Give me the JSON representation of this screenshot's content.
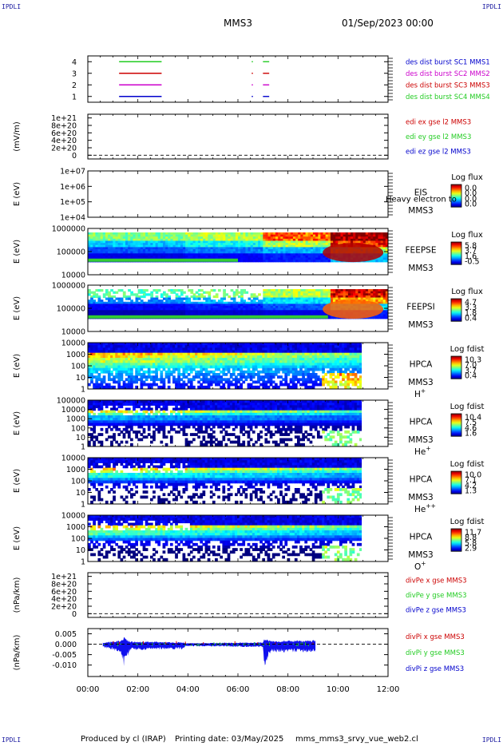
{
  "header": {
    "corner_label": "IPDLI",
    "spacecraft": "MMS3",
    "datetime": "01/Sep/2023 00:00"
  },
  "footer": {
    "produced_by": "Produced by cl (IRAP)",
    "printing_date": "Printing date: 03/May/2025",
    "script_name": "mms_mms3_srvy_vue_web2.cl"
  },
  "colors": {
    "blue": "#0000cc",
    "magenta": "#cc00cc",
    "red": "#cc0000",
    "green": "#22cc22",
    "black": "#000000"
  },
  "chart_data": {
    "type": "multi-panel time series / spectrogram",
    "x": {
      "ticks": [
        "00:00",
        "02:00",
        "04:00",
        "06:00",
        "08:00",
        "10:00",
        "12:00"
      ],
      "range_hours": [
        0,
        12
      ]
    },
    "panels": [
      {
        "id": "burst",
        "type": "timeline",
        "yticks": [
          "4",
          "3",
          "2",
          "1"
        ],
        "yrange": [
          0.5,
          4.5
        ],
        "legend": [
          {
            "text": "des dist burst SC1 MMS1",
            "color": "#0000cc"
          },
          {
            "text": "des dist burst SC2 MMS2",
            "color": "#cc00cc"
          },
          {
            "text": "des dist burst SC3 MMS3",
            "color": "#cc0000"
          },
          {
            "text": "des dist burst SC4 MMS4",
            "color": "#22cc22"
          }
        ],
        "intervals": [
          {
            "sc": 4,
            "color": "#22cc22",
            "spans": [
              [
                1.25,
                2.95
              ],
              [
                6.55,
                6.6
              ],
              [
                7.0,
                7.25
              ]
            ]
          },
          {
            "sc": 3,
            "color": "#cc0000",
            "spans": [
              [
                1.25,
                2.95
              ],
              [
                6.55,
                6.6
              ],
              [
                7.0,
                7.25
              ]
            ]
          },
          {
            "sc": 2,
            "color": "#cc00cc",
            "spans": [
              [
                1.25,
                2.95
              ],
              [
                6.55,
                6.6
              ],
              [
                7.0,
                7.25
              ]
            ]
          },
          {
            "sc": 1,
            "color": "#0000cc",
            "spans": [
              [
                1.25,
                2.95
              ],
              [
                6.55,
                6.6
              ],
              [
                7.0,
                7.25
              ]
            ]
          }
        ]
      },
      {
        "id": "edi",
        "type": "line",
        "ylabel": "(mV/m)",
        "yticks": [
          "1e+21",
          "8e+20",
          "6e+20",
          "4e+20",
          "2e+20",
          "0"
        ],
        "ytick_values": [
          1e+21,
          8e+20,
          6e+20,
          4e+20,
          2e+20,
          0
        ],
        "yrange": [
          -1e+20,
          1.1e+21
        ],
        "legend": [
          {
            "text": "edi ex gse l2 MMS3",
            "color": "#cc0000"
          },
          {
            "text": "edi ey gse l2 MMS3",
            "color": "#22cc22"
          },
          {
            "text": "edi ez gse l2 MMS3",
            "color": "#0000cc"
          }
        ]
      },
      {
        "id": "eis",
        "type": "spectrogram",
        "ylabel": "E (eV)",
        "yticks": [
          "1e+07",
          "1e+06",
          "1e+05",
          "1e+04"
        ],
        "log_range": [
          4,
          7
        ],
        "instrument": "EIS",
        "overlay_text": "Heavy electron to",
        "sc": "MMS3",
        "cb_title": "Log flux",
        "cb_ticks": [
          "0.0",
          "0.0",
          "0.0",
          "0.0"
        ],
        "data": []
      },
      {
        "id": "feepse",
        "type": "spectrogram",
        "ylabel": "E (eV)",
        "yticks": [
          "1000000",
          "100000",
          "10000"
        ],
        "log_range": [
          4,
          6
        ],
        "instrument": "FEEPSE",
        "sc": "MMS3",
        "cb_title": "Log flux",
        "cb_ticks": [
          "5.8",
          "3.7",
          "1.6",
          "-0.5"
        ],
        "data_range": [
          4.6,
          6.1
        ],
        "segments": [
          {
            "t": [
              0.0,
              3.85
            ],
            "vals": [
              0.5,
              0.32,
              0.2,
              0.1
            ]
          },
          {
            "t": [
              3.85,
              7.0
            ],
            "vals": [
              0.55,
              0.38,
              0.25,
              0.12
            ]
          },
          {
            "t": [
              7.0,
              9.7
            ],
            "vals": [
              0.78,
              0.55,
              0.3,
              0.15
            ]
          },
          {
            "t": [
              9.7,
              12.0
            ],
            "vals": [
              0.98,
              0.85,
              0.55,
              0.3
            ]
          }
        ]
      },
      {
        "id": "feepsi",
        "type": "spectrogram",
        "ylabel": "E (eV)",
        "yticks": [
          "1000000",
          "100000",
          "10000"
        ],
        "log_range": [
          4,
          6
        ],
        "instrument": "FEEPSI",
        "sc": "MMS3",
        "cb_title": "Log flux",
        "cb_ticks": [
          "4.7",
          "3.3",
          "1.8",
          "0.4"
        ],
        "data_range": [
          4.6,
          6.1
        ],
        "segments": [
          {
            "t": [
              0.0,
              3.85
            ],
            "vals": [
              0.45,
              0.25,
              0.12,
              0.05
            ]
          },
          {
            "t": [
              3.85,
              7.0
            ],
            "vals": [
              0.5,
              0.3,
              0.15,
              0.08
            ]
          },
          {
            "t": [
              7.0,
              9.7
            ],
            "vals": [
              0.55,
              0.35,
              0.2,
              0.1
            ]
          },
          {
            "t": [
              9.7,
              12.0
            ],
            "vals": [
              0.9,
              0.7,
              0.35,
              0.15
            ]
          }
        ]
      },
      {
        "id": "hpca_h",
        "type": "spectrogram",
        "ylabel": "E (eV)",
        "yticks": [
          "10000",
          "1000",
          "100",
          "10",
          "1"
        ],
        "log_range": [
          0,
          4.5
        ],
        "instrument": "HPCA",
        "sc": "MMS3",
        "species": "H",
        "species_sup": "+",
        "cb_title": "Log fdist",
        "cb_ticks": [
          "10.3",
          "7.0",
          "3.7",
          "0.4"
        ],
        "data_range": [
          0.3,
          4.3
        ],
        "end_hour": 10.95,
        "profile": [
          0.85,
          0.78,
          0.72,
          0.65,
          0.58,
          0.5,
          0.42,
          0.35,
          0.3,
          0.25,
          0.2,
          0.15
        ]
      },
      {
        "id": "hpca_he",
        "type": "spectrogram",
        "ylabel": "E (eV)",
        "yticks": [
          "100000",
          "10000",
          "1000",
          "100",
          "10",
          "1"
        ],
        "log_range": [
          0,
          5
        ],
        "instrument": "HPCA",
        "sc": "MMS3",
        "species": "He",
        "species_sup": "+",
        "cb_title": "Log fdist",
        "cb_ticks": [
          "10.4",
          "7.5",
          "4.6",
          "1.6"
        ],
        "data_range": [
          1.3,
          4.3
        ],
        "end_hour": 10.95,
        "profile": [
          0.9,
          0.8,
          0.65,
          0.45,
          0.3,
          0.2,
          0.12,
          0.05,
          0.0,
          0.0,
          0.0,
          0.0
        ]
      },
      {
        "id": "hpca_he2",
        "type": "spectrogram",
        "ylabel": "E (eV)",
        "yticks": [
          "10000",
          "1000",
          "100",
          "10",
          "1"
        ],
        "log_range": [
          0,
          4.5
        ],
        "instrument": "HPCA",
        "sc": "MMS3",
        "species": "He",
        "species_sup": "++",
        "cb_title": "Log fdist",
        "cb_ticks": [
          "10.0",
          "7.1",
          "4.2",
          "1.3"
        ],
        "data_range": [
          0.3,
          4.3
        ],
        "end_hour": 10.95,
        "profile": [
          0.9,
          0.82,
          0.7,
          0.55,
          0.4,
          0.28,
          0.18,
          0.1,
          0.05,
          0.0,
          0.0,
          0.0
        ]
      },
      {
        "id": "hpca_o",
        "type": "spectrogram",
        "ylabel": "E (eV)",
        "yticks": [
          "10000",
          "1000",
          "100",
          "10",
          "1"
        ],
        "log_range": [
          0,
          4.5
        ],
        "instrument": "HPCA",
        "sc": "MMS3",
        "species": "O",
        "species_sup": "+",
        "cb_title": "Log fdist",
        "cb_ticks": [
          "11.7",
          "8.8",
          "5.8",
          "2.9"
        ],
        "data_range": [
          0.3,
          4.3
        ],
        "end_hour": 10.95,
        "profile": [
          0.9,
          0.8,
          0.7,
          0.58,
          0.45,
          0.32,
          0.22,
          0.12,
          0.05,
          0.0,
          0.0,
          0.0
        ]
      },
      {
        "id": "divpe",
        "type": "line",
        "ylabel": "(nPa/km)",
        "yticks": [
          "1e+21",
          "8e+20",
          "6e+20",
          "4e+20",
          "2e+20",
          "0"
        ],
        "ytick_values": [
          1e+21,
          8e+20,
          6e+20,
          4e+20,
          2e+20,
          0
        ],
        "yrange": [
          -1e+20,
          1.1e+21
        ],
        "legend": [
          {
            "text": "divPe x gse MMS3",
            "color": "#cc0000"
          },
          {
            "text": "divPe y gse MMS3",
            "color": "#22cc22"
          },
          {
            "text": "divPe z gse MMS3",
            "color": "#0000cc"
          }
        ]
      },
      {
        "id": "divpi",
        "type": "line",
        "ylabel": "(nPa/km)",
        "yticks": [
          "0.005",
          "0.000",
          "-0.005",
          "-0.010"
        ],
        "ytick_values": [
          0.005,
          0.0,
          -0.005,
          -0.01
        ],
        "yrange": [
          -0.0155,
          0.0075
        ],
        "legend": [
          {
            "text": "divPi x gse MMS3",
            "color": "#cc0000"
          },
          {
            "text": "divPi y gse MMS3",
            "color": "#22cc22"
          },
          {
            "text": "divPi z gse MMS3",
            "color": "#0000cc"
          }
        ],
        "data_span_hours": [
          0.6,
          9.1
        ],
        "envelope": [
          {
            "t": 0.6,
            "lo": -0.0015,
            "hi": 0.0008
          },
          {
            "t": 1.3,
            "lo": -0.004,
            "hi": 0.002
          },
          {
            "t": 1.45,
            "lo": -0.011,
            "hi": 0.0035
          },
          {
            "t": 1.7,
            "lo": -0.003,
            "hi": 0.0015
          },
          {
            "t": 3.8,
            "lo": -0.0025,
            "hi": 0.001
          },
          {
            "t": 3.9,
            "lo": -0.001,
            "hi": 0.0005
          },
          {
            "t": 7.0,
            "lo": -0.0015,
            "hi": 0.001
          },
          {
            "t": 7.05,
            "lo": -0.011,
            "hi": 0.003
          },
          {
            "t": 7.3,
            "lo": -0.004,
            "hi": 0.0018
          },
          {
            "t": 9.1,
            "lo": -0.004,
            "hi": 0.002
          }
        ]
      }
    ]
  }
}
